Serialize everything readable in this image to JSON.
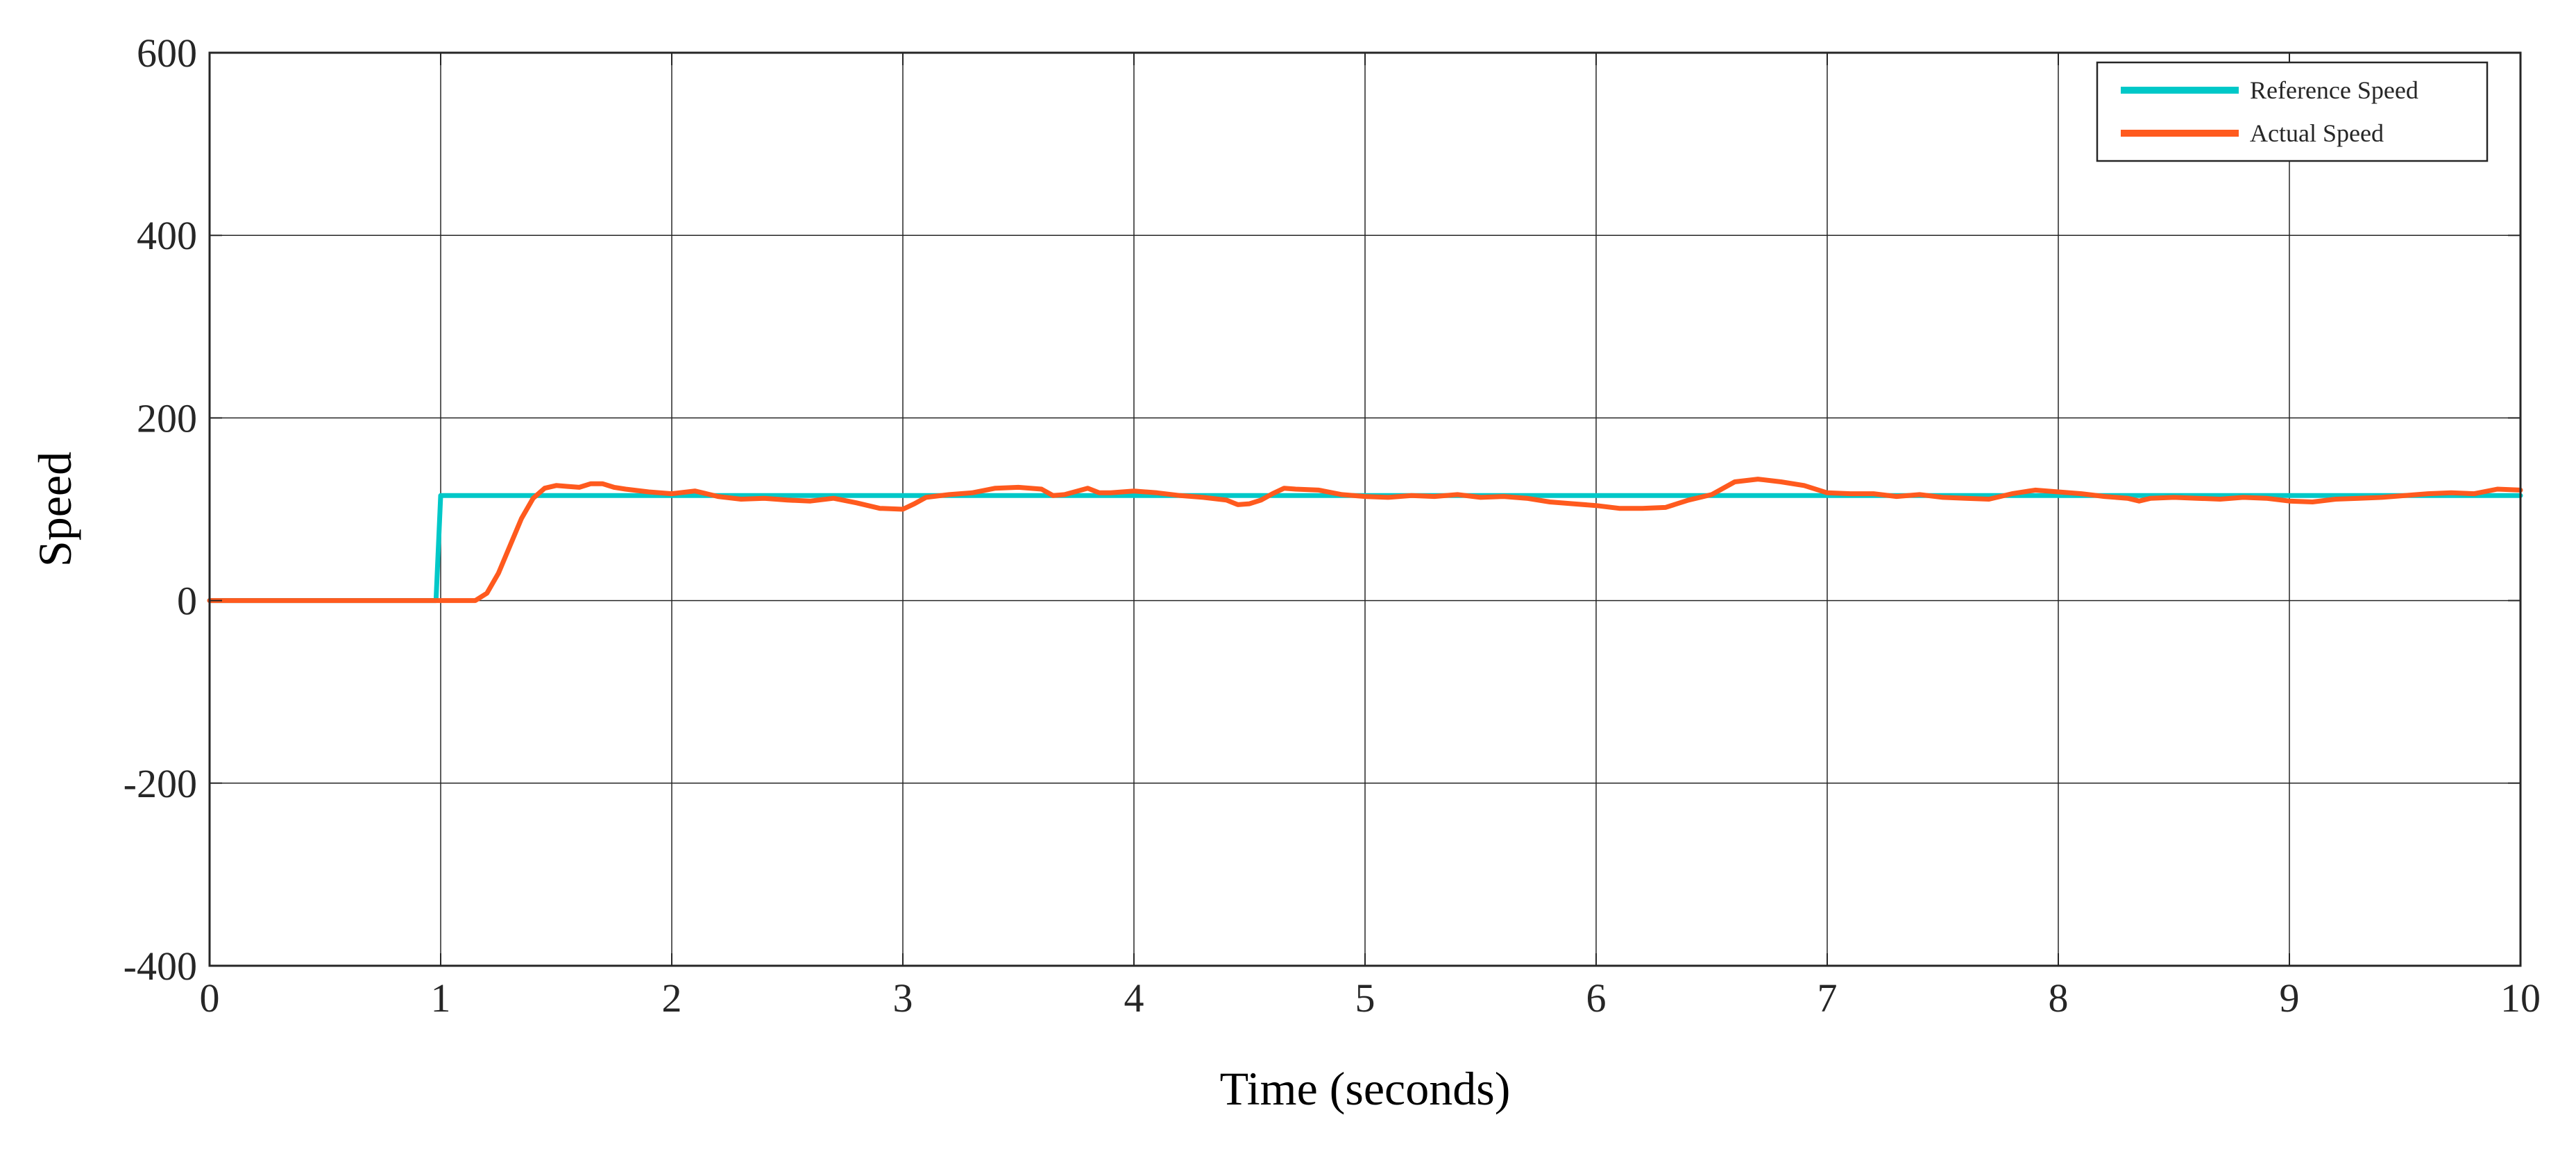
{
  "chart_data": {
    "type": "line",
    "title": "",
    "xlabel": "Time (seconds)",
    "ylabel": "Speed",
    "xlim": [
      0,
      10
    ],
    "ylim": [
      -400,
      600
    ],
    "xticks": [
      0,
      1,
      2,
      3,
      4,
      5,
      6,
      7,
      8,
      9,
      10
    ],
    "yticks": [
      -400,
      -200,
      0,
      200,
      400,
      600
    ],
    "grid": true,
    "legend_position": "top-right",
    "series": [
      {
        "name": "Reference Speed",
        "color": "#00C8C8",
        "points": [
          [
            0,
            0
          ],
          [
            0.98,
            0
          ],
          [
            1.0,
            115
          ],
          [
            10,
            115
          ]
        ]
      },
      {
        "name": "Actual Speed",
        "color": "#FF5A1E",
        "points": [
          [
            0,
            0
          ],
          [
            1.15,
            0
          ],
          [
            1.2,
            8
          ],
          [
            1.25,
            30
          ],
          [
            1.3,
            60
          ],
          [
            1.35,
            90
          ],
          [
            1.4,
            112
          ],
          [
            1.45,
            123
          ],
          [
            1.5,
            126
          ],
          [
            1.55,
            125
          ],
          [
            1.6,
            124
          ],
          [
            1.65,
            128
          ],
          [
            1.7,
            128
          ],
          [
            1.75,
            124
          ],
          [
            1.8,
            122
          ],
          [
            1.9,
            119
          ],
          [
            2.0,
            117
          ],
          [
            2.1,
            120
          ],
          [
            2.15,
            117
          ],
          [
            2.2,
            114
          ],
          [
            2.3,
            111
          ],
          [
            2.4,
            112
          ],
          [
            2.5,
            110
          ],
          [
            2.6,
            109
          ],
          [
            2.7,
            112
          ],
          [
            2.8,
            107
          ],
          [
            2.9,
            101
          ],
          [
            3.0,
            100
          ],
          [
            3.05,
            106
          ],
          [
            3.1,
            113
          ],
          [
            3.2,
            116
          ],
          [
            3.3,
            118
          ],
          [
            3.4,
            123
          ],
          [
            3.5,
            124
          ],
          [
            3.6,
            122
          ],
          [
            3.65,
            115
          ],
          [
            3.7,
            116
          ],
          [
            3.8,
            123
          ],
          [
            3.85,
            118
          ],
          [
            3.9,
            118
          ],
          [
            4.0,
            120
          ],
          [
            4.1,
            118
          ],
          [
            4.2,
            115
          ],
          [
            4.3,
            113
          ],
          [
            4.4,
            110
          ],
          [
            4.45,
            105
          ],
          [
            4.5,
            106
          ],
          [
            4.55,
            110
          ],
          [
            4.6,
            117
          ],
          [
            4.65,
            123
          ],
          [
            4.7,
            122
          ],
          [
            4.8,
            121
          ],
          [
            4.9,
            116
          ],
          [
            5.0,
            114
          ],
          [
            5.1,
            113
          ],
          [
            5.2,
            115
          ],
          [
            5.3,
            114
          ],
          [
            5.4,
            116
          ],
          [
            5.5,
            113
          ],
          [
            5.6,
            114
          ],
          [
            5.7,
            112
          ],
          [
            5.8,
            108
          ],
          [
            5.9,
            106
          ],
          [
            6.0,
            104
          ],
          [
            6.1,
            101
          ],
          [
            6.2,
            101
          ],
          [
            6.3,
            102
          ],
          [
            6.35,
            106
          ],
          [
            6.4,
            110
          ],
          [
            6.5,
            116
          ],
          [
            6.6,
            130
          ],
          [
            6.7,
            133
          ],
          [
            6.8,
            130
          ],
          [
            6.9,
            126
          ],
          [
            7.0,
            118
          ],
          [
            7.1,
            117
          ],
          [
            7.2,
            117
          ],
          [
            7.3,
            114
          ],
          [
            7.4,
            116
          ],
          [
            7.5,
            113
          ],
          [
            7.6,
            112
          ],
          [
            7.7,
            111
          ],
          [
            7.8,
            117
          ],
          [
            7.9,
            121
          ],
          [
            8.0,
            119
          ],
          [
            8.1,
            117
          ],
          [
            8.2,
            114
          ],
          [
            8.3,
            112
          ],
          [
            8.35,
            109
          ],
          [
            8.4,
            112
          ],
          [
            8.5,
            113
          ],
          [
            8.6,
            112
          ],
          [
            8.7,
            111
          ],
          [
            8.8,
            113
          ],
          [
            8.9,
            112
          ],
          [
            9.0,
            109
          ],
          [
            9.1,
            108
          ],
          [
            9.2,
            111
          ],
          [
            9.3,
            112
          ],
          [
            9.4,
            113
          ],
          [
            9.5,
            115
          ],
          [
            9.6,
            117
          ],
          [
            9.7,
            118
          ],
          [
            9.8,
            117
          ],
          [
            9.9,
            122
          ],
          [
            10.0,
            121
          ]
        ]
      }
    ]
  }
}
